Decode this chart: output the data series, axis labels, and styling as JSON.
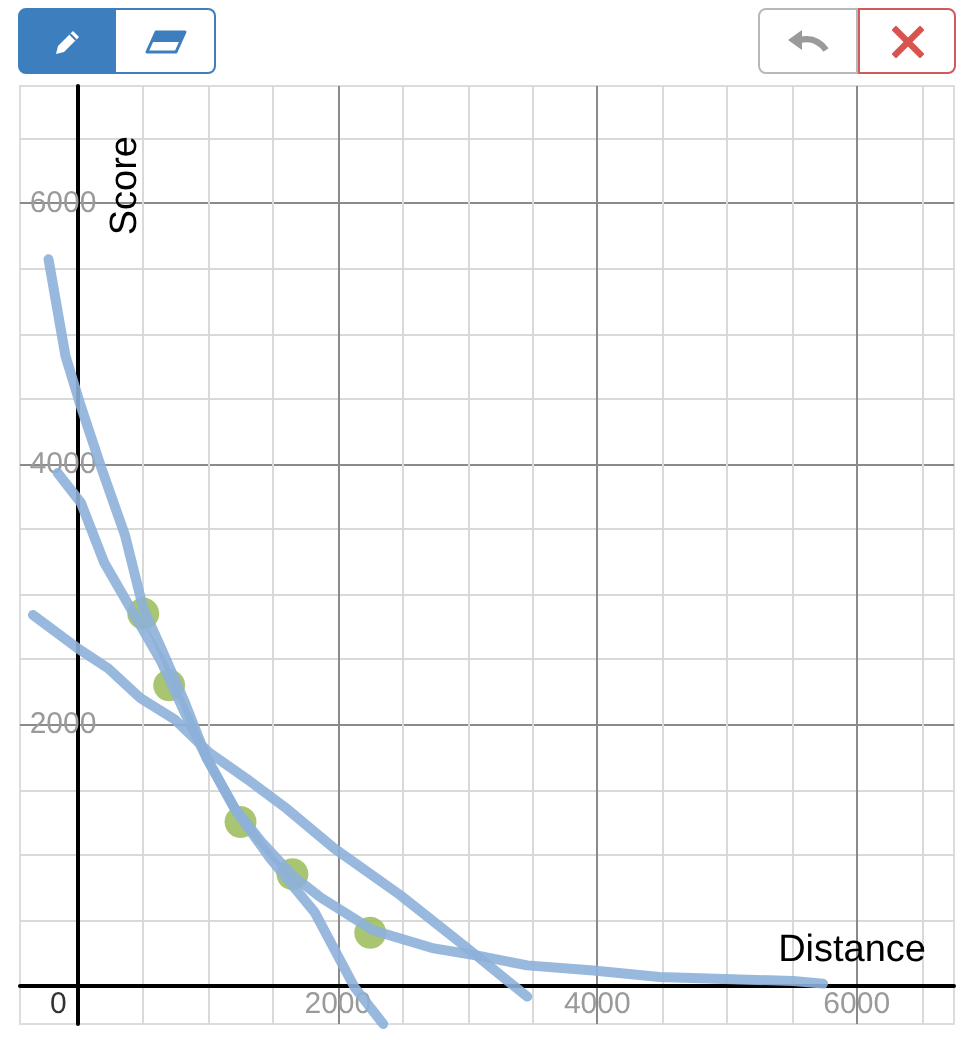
{
  "chart_data": {
    "type": "line",
    "xlabel": "Distance",
    "ylabel": "Score",
    "xlim": [
      -450,
      6750
    ],
    "ylim": [
      -300,
      6900
    ],
    "xticks": [
      0,
      {
        "value": 500,
        "label": null
      },
      {
        "value": 1000,
        "label": null
      },
      {
        "value": 1500,
        "label": null
      },
      2000,
      {
        "value": 2500,
        "label": null
      },
      {
        "value": 3000,
        "label": null
      },
      {
        "value": 3500,
        "label": null
      },
      4000,
      {
        "value": 4500,
        "label": null
      },
      {
        "value": 5000,
        "label": null
      },
      {
        "value": 5500,
        "label": null
      },
      6000,
      {
        "value": 6500,
        "label": null
      }
    ],
    "yticks": [
      {
        "value": 500,
        "label": null
      },
      {
        "value": 1000,
        "label": null
      },
      {
        "value": 1500,
        "label": null
      },
      2000,
      {
        "value": 2500,
        "label": null
      },
      {
        "value": 3000,
        "label": null
      },
      {
        "value": 3500,
        "label": null
      },
      4000,
      {
        "value": 4500,
        "label": null
      },
      {
        "value": 5000,
        "label": null
      },
      {
        "value": 5500,
        "label": null
      },
      6000,
      {
        "value": 6500,
        "label": null
      }
    ],
    "grid": true,
    "series": [
      {
        "type": "scatter",
        "marker": "circle",
        "color": "#9bbb59",
        "x": [
          500,
          700,
          1250,
          1650,
          2250
        ],
        "values": [
          2850,
          2300,
          1250,
          850,
          400
        ]
      },
      {
        "color": "#8db0d9",
        "x": [
          -230,
          -100,
          10,
          180,
          360,
          500,
          640,
          820,
          990,
          1200,
          1410,
          1650,
          1870,
          2270,
          2740,
          3050,
          3460,
          3970,
          4480,
          5510,
          5740
        ],
        "values": [
          5570,
          4830,
          4470,
          3960,
          3450,
          2890,
          2580,
          2170,
          1740,
          1360,
          1100,
          840,
          670,
          420,
          280,
          230,
          150,
          110,
          60,
          30,
          10
        ]
      },
      {
        "color": "#8db0d9",
        "x": [
          -160,
          20,
          200,
          420,
          640,
          820,
          990,
          1220,
          1480,
          1820,
          2130,
          2350
        ],
        "values": [
          3930,
          3700,
          3240,
          2860,
          2480,
          2090,
          1740,
          1330,
          970,
          560,
          -20,
          -300
        ]
      },
      {
        "color": "#8db0d9",
        "x": [
          -350,
          0,
          230,
          480,
          740,
          1000,
          1300,
          1610,
          1970,
          2480,
          3000,
          3460
        ],
        "values": [
          2840,
          2580,
          2430,
          2200,
          2040,
          1790,
          1580,
          1350,
          1050,
          690,
          280,
          -90
        ]
      }
    ]
  }
}
